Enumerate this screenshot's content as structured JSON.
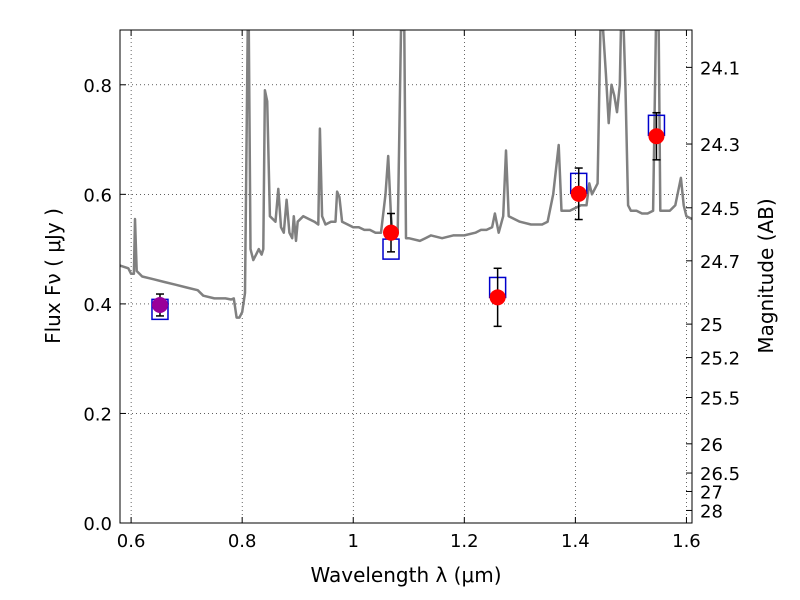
{
  "chart_data": {
    "type": "scatter",
    "xlabel": "Wavelength  λ (μm)",
    "ylabel": "Flux  Fν  ( μJy )",
    "ylabel_right": "Magnitude (AB)",
    "xlim": [
      0.58,
      1.61
    ],
    "ylim": [
      0.0,
      0.9
    ],
    "grid": true,
    "x_ticks": [
      {
        "value": 0.6,
        "label": "0.6"
      },
      {
        "value": 0.8,
        "label": "0.8"
      },
      {
        "value": 1.0,
        "label": "1"
      },
      {
        "value": 1.2,
        "label": "1.2"
      },
      {
        "value": 1.4,
        "label": "1.4"
      },
      {
        "value": 1.6,
        "label": "1.6"
      }
    ],
    "y_ticks": [
      {
        "value": 0.0,
        "label": "0.0"
      },
      {
        "value": 0.2,
        "label": "0.2"
      },
      {
        "value": 0.4,
        "label": "0.4"
      },
      {
        "value": 0.6,
        "label": "0.6"
      },
      {
        "value": 0.8,
        "label": "0.8"
      }
    ],
    "mag_ticks": [
      {
        "mag": 24.1,
        "label": "24.1"
      },
      {
        "mag": 24.3,
        "label": "24.3"
      },
      {
        "mag": 24.5,
        "label": "24.5"
      },
      {
        "mag": 24.7,
        "label": "24.7"
      },
      {
        "mag": 25.0,
        "label": "25"
      },
      {
        "mag": 25.2,
        "label": "25.2"
      },
      {
        "mag": 25.5,
        "label": "25.5"
      },
      {
        "mag": 26.0,
        "label": "26"
      },
      {
        "mag": 26.5,
        "label": "26.5"
      },
      {
        "mag": 27.0,
        "label": "27"
      },
      {
        "mag": 28.0,
        "label": "28"
      }
    ],
    "model_spectrum": {
      "color": "#808080",
      "points": [
        [
          0.58,
          0.47
        ],
        [
          0.595,
          0.465
        ],
        [
          0.6,
          0.455
        ],
        [
          0.605,
          0.455
        ],
        [
          0.607,
          0.555
        ],
        [
          0.61,
          0.46
        ],
        [
          0.62,
          0.45
        ],
        [
          0.64,
          0.445
        ],
        [
          0.66,
          0.44
        ],
        [
          0.68,
          0.435
        ],
        [
          0.7,
          0.43
        ],
        [
          0.72,
          0.425
        ],
        [
          0.73,
          0.415
        ],
        [
          0.75,
          0.41
        ],
        [
          0.77,
          0.41
        ],
        [
          0.78,
          0.408
        ],
        [
          0.785,
          0.41
        ],
        [
          0.79,
          0.375
        ],
        [
          0.795,
          0.375
        ],
        [
          0.8,
          0.385
        ],
        [
          0.805,
          0.42
        ],
        [
          0.81,
          0.9
        ],
        [
          0.812,
          0.9
        ],
        [
          0.815,
          0.5
        ],
        [
          0.82,
          0.48
        ],
        [
          0.825,
          0.49
        ],
        [
          0.83,
          0.5
        ],
        [
          0.835,
          0.49
        ],
        [
          0.838,
          0.5
        ],
        [
          0.841,
          0.79
        ],
        [
          0.845,
          0.77
        ],
        [
          0.85,
          0.56
        ],
        [
          0.86,
          0.55
        ],
        [
          0.865,
          0.61
        ],
        [
          0.87,
          0.54
        ],
        [
          0.875,
          0.53
        ],
        [
          0.88,
          0.59
        ],
        [
          0.885,
          0.53
        ],
        [
          0.89,
          0.52
        ],
        [
          0.893,
          0.56
        ],
        [
          0.897,
          0.515
        ],
        [
          0.9,
          0.55
        ],
        [
          0.91,
          0.56
        ],
        [
          0.92,
          0.555
        ],
        [
          0.93,
          0.55
        ],
        [
          0.937,
          0.545
        ],
        [
          0.94,
          0.72
        ],
        [
          0.944,
          0.56
        ],
        [
          0.95,
          0.545
        ],
        [
          0.96,
          0.55
        ],
        [
          0.968,
          0.55
        ],
        [
          0.971,
          0.605
        ],
        [
          0.975,
          0.595
        ],
        [
          0.98,
          0.55
        ],
        [
          0.99,
          0.545
        ],
        [
          1.0,
          0.54
        ],
        [
          1.01,
          0.54
        ],
        [
          1.02,
          0.535
        ],
        [
          1.03,
          0.535
        ],
        [
          1.04,
          0.53
        ],
        [
          1.05,
          0.53
        ],
        [
          1.058,
          0.6
        ],
        [
          1.063,
          0.67
        ],
        [
          1.068,
          0.56
        ],
        [
          1.072,
          0.52
        ],
        [
          1.08,
          0.53
        ],
        [
          1.086,
          0.9
        ],
        [
          1.092,
          0.9
        ],
        [
          1.095,
          0.52
        ],
        [
          1.1,
          0.52
        ],
        [
          1.12,
          0.515
        ],
        [
          1.13,
          0.52
        ],
        [
          1.14,
          0.525
        ],
        [
          1.16,
          0.52
        ],
        [
          1.18,
          0.525
        ],
        [
          1.2,
          0.525
        ],
        [
          1.22,
          0.53
        ],
        [
          1.23,
          0.535
        ],
        [
          1.24,
          0.535
        ],
        [
          1.25,
          0.54
        ],
        [
          1.255,
          0.565
        ],
        [
          1.262,
          0.53
        ],
        [
          1.27,
          0.56
        ],
        [
          1.275,
          0.68
        ],
        [
          1.28,
          0.56
        ],
        [
          1.3,
          0.55
        ],
        [
          1.32,
          0.545
        ],
        [
          1.34,
          0.545
        ],
        [
          1.35,
          0.55
        ],
        [
          1.36,
          0.6
        ],
        [
          1.37,
          0.69
        ],
        [
          1.375,
          0.57
        ],
        [
          1.39,
          0.57
        ],
        [
          1.4,
          0.575
        ],
        [
          1.41,
          0.58
        ],
        [
          1.42,
          0.58
        ],
        [
          1.425,
          0.62
        ],
        [
          1.43,
          0.6
        ],
        [
          1.44,
          0.62
        ],
        [
          1.445,
          0.9
        ],
        [
          1.45,
          0.9
        ],
        [
          1.455,
          0.82
        ],
        [
          1.46,
          0.73
        ],
        [
          1.465,
          0.8
        ],
        [
          1.47,
          0.78
        ],
        [
          1.475,
          0.75
        ],
        [
          1.48,
          0.8
        ],
        [
          1.482,
          0.9
        ],
        [
          1.487,
          0.9
        ],
        [
          1.49,
          0.8
        ],
        [
          1.495,
          0.58
        ],
        [
          1.5,
          0.57
        ],
        [
          1.51,
          0.57
        ],
        [
          1.52,
          0.565
        ],
        [
          1.53,
          0.565
        ],
        [
          1.54,
          0.57
        ],
        [
          1.545,
          0.9
        ],
        [
          1.55,
          0.9
        ],
        [
          1.553,
          0.57
        ],
        [
          1.56,
          0.57
        ],
        [
          1.57,
          0.57
        ],
        [
          1.58,
          0.58
        ],
        [
          1.59,
          0.63
        ],
        [
          1.595,
          0.58
        ],
        [
          1.6,
          0.56
        ],
        [
          1.61,
          0.555
        ]
      ]
    },
    "model_photometry": {
      "color": "#0000cc",
      "points": [
        {
          "x": 0.652,
          "y": 0.39
        },
        {
          "x": 1.068,
          "y": 0.5
        },
        {
          "x": 1.26,
          "y": 0.43
        },
        {
          "x": 1.406,
          "y": 0.62
        },
        {
          "x": 1.546,
          "y": 0.726
        }
      ]
    },
    "observed": {
      "color": "#ff0000",
      "first_point_color": "#990099",
      "points": [
        {
          "x": 0.652,
          "y": 0.398,
          "yerr": 0.02
        },
        {
          "x": 1.068,
          "y": 0.53,
          "yerr": 0.035
        },
        {
          "x": 1.26,
          "y": 0.412,
          "yerr": 0.053
        },
        {
          "x": 1.406,
          "y": 0.601,
          "yerr": 0.047
        },
        {
          "x": 1.546,
          "y": 0.706,
          "yerr": 0.043
        }
      ]
    }
  }
}
